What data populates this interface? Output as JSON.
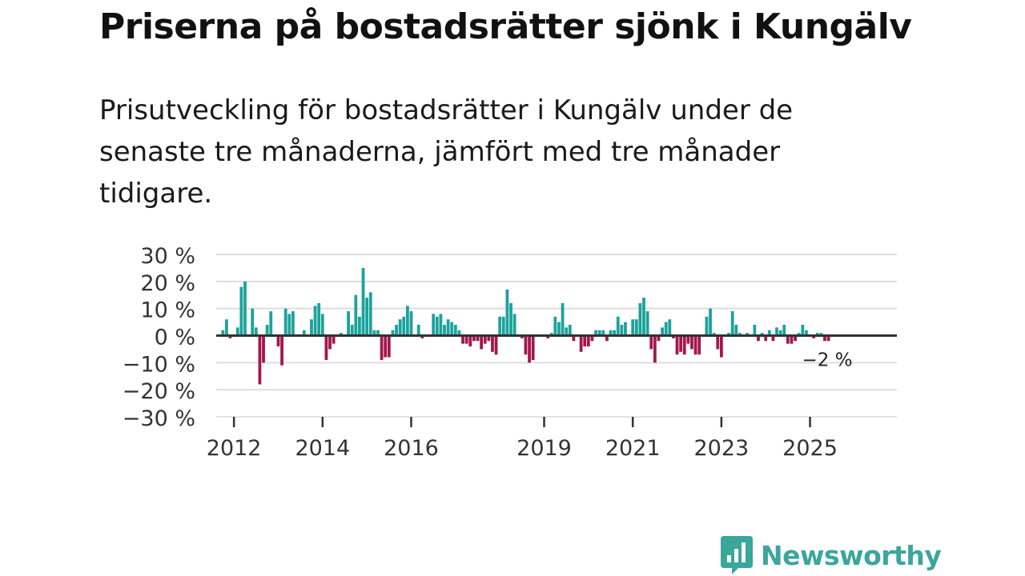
{
  "title": "Priserna på bostadsrätter sjönk i Kungälv",
  "subtitle": "Prisutveckling för bostadsrätter i Kungälv under de senaste tre månaderna, jämfört med tre månader tidigare.",
  "brand": {
    "name": "Newsworthy",
    "color": "#3aa69c"
  },
  "colors": {
    "positive": "#1aa39b",
    "negative": "#a3164d",
    "grid": "#dddddd",
    "zero_line": "#333333"
  },
  "chart_data": {
    "type": "bar",
    "title": "Priserna på bostadsrätter sjönk i Kungälv",
    "xlabel": "",
    "ylabel": "",
    "ylim": [
      -30,
      30
    ],
    "y_ticks": [
      30,
      20,
      10,
      0,
      -10,
      -20,
      -30
    ],
    "y_tick_labels": [
      "30 %",
      "20 %",
      "10 %",
      "0 %",
      "−10 %",
      "−20 %",
      "−30 %"
    ],
    "x_ticks": [
      2012,
      2014,
      2016,
      2019,
      2021,
      2023,
      2025
    ],
    "x_tick_labels": [
      "2012",
      "2014",
      "2016",
      "2019",
      "2021",
      "2023",
      "2025"
    ],
    "x_range": [
      2011.6,
      2026.96
    ],
    "last_value_label": "−2 %",
    "series": [
      {
        "name": "Prisutveckling",
        "unit": "%",
        "start": "2011-08",
        "frequency": "monthly",
        "values": [
          0,
          0,
          2,
          6,
          -1,
          0,
          3,
          18,
          20,
          0,
          10,
          3,
          -18,
          -10,
          4,
          9,
          0,
          -4,
          -11,
          10,
          8,
          9,
          0,
          0,
          2,
          0,
          6,
          11,
          12,
          8,
          -9,
          -5,
          -3,
          0,
          1,
          0,
          9,
          4,
          15,
          7,
          25,
          14,
          16,
          2,
          2,
          -9,
          -8,
          -8,
          2,
          4,
          6,
          7,
          11,
          9,
          0,
          4,
          -1,
          0,
          0,
          8,
          7,
          8,
          4,
          6,
          5,
          4,
          2,
          -3,
          -3,
          -4,
          -2,
          -2,
          -5,
          -3,
          -2,
          -6,
          -7,
          7,
          7,
          17,
          12,
          8,
          0,
          -1,
          -7,
          -10,
          -9,
          0,
          0,
          0,
          -1,
          1,
          7,
          5,
          12,
          3,
          4,
          -2,
          0,
          -6,
          -4,
          -4,
          -2,
          2,
          2,
          2,
          -2,
          2,
          2,
          7,
          4,
          5,
          0,
          6,
          6,
          12,
          14,
          9,
          -5,
          -10,
          -2,
          3,
          5,
          6,
          -1,
          -7,
          -6,
          -7,
          -3,
          -5,
          -7,
          -7,
          0,
          7,
          10,
          1,
          -5,
          -8,
          0,
          1,
          9,
          4,
          1,
          0,
          1,
          0,
          4,
          -2,
          1,
          -2,
          2,
          -2,
          3,
          2,
          4,
          -3,
          -3,
          -2,
          1,
          4,
          2,
          0,
          -1,
          1,
          1,
          -2,
          -2
        ]
      }
    ]
  }
}
